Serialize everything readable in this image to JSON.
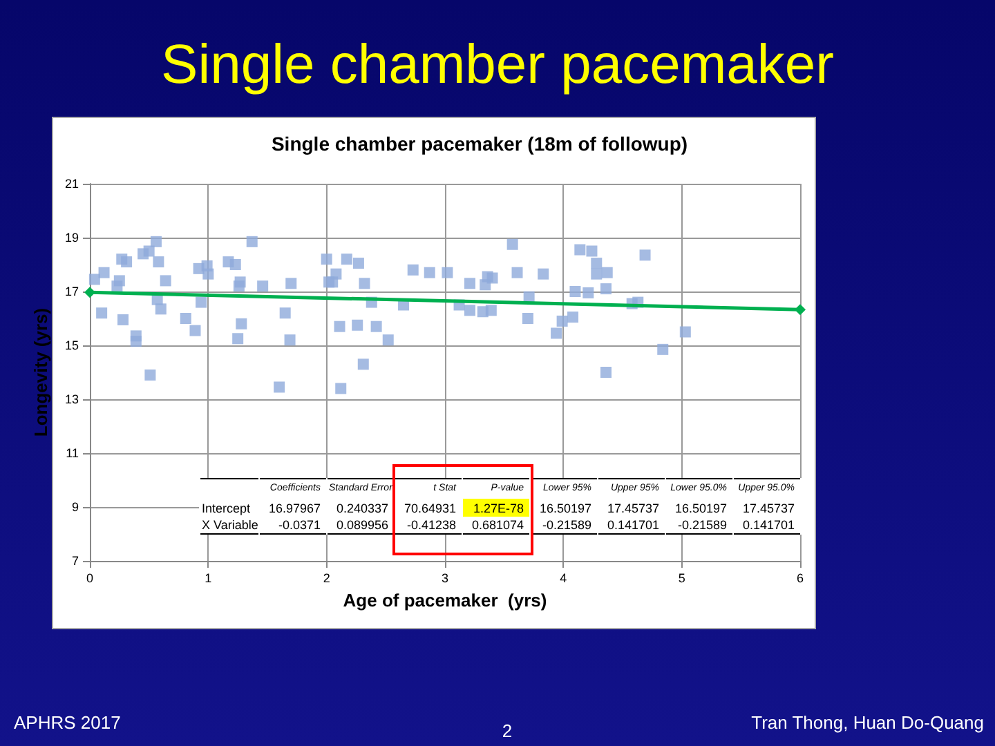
{
  "chart_data": {
    "type": "scatter",
    "title": "Single chamber pacemaker",
    "subtitle": "Single chamber pacemaker (18m of followup)",
    "xlabel": "Age of pacemaker  (yrs)",
    "ylabel": "Longevity (yrs)",
    "xlim": [
      0,
      6
    ],
    "xticks": [
      0,
      1,
      2,
      3,
      4,
      5,
      6
    ],
    "ylim": [
      7,
      21
    ],
    "yticks": [
      7,
      9,
      11,
      13,
      15,
      17,
      19,
      21
    ],
    "grid": true,
    "marker": "square",
    "series": [
      {
        "color": "#8eaadb",
        "x": [
          0.04,
          0.1,
          0.12,
          0.23,
          0.25,
          0.27,
          0.31,
          0.28,
          0.39,
          0.39,
          0.45,
          0.5,
          0.56,
          0.58,
          0.57,
          0.6,
          0.51,
          0.64,
          0.81,
          0.89,
          0.92,
          0.94,
          0.99,
          1.0,
          1.17,
          1.23,
          1.27,
          1.26,
          1.28,
          1.25,
          1.37,
          1.46,
          1.65,
          1.7,
          1.69,
          1.6,
          2.0,
          2.08,
          2.02,
          2.05,
          2.17,
          2.27,
          2.32,
          2.38,
          2.11,
          2.26,
          2.42,
          2.52,
          2.31,
          2.12,
          2.73,
          2.87,
          3.02,
          2.65,
          3.12,
          3.21,
          3.21,
          3.32,
          3.39,
          3.34,
          3.36,
          3.4,
          3.57,
          3.61,
          3.71,
          3.7,
          3.83,
          3.94,
          3.99,
          4.08,
          4.1,
          4.14,
          4.24,
          4.28,
          4.28,
          4.37,
          4.36,
          4.21,
          4.58,
          4.63,
          4.69,
          5.03,
          4.84,
          4.36
        ],
        "values": [
          17.45,
          16.2,
          17.7,
          17.2,
          17.4,
          18.2,
          18.1,
          15.95,
          15.35,
          15.15,
          18.4,
          18.5,
          18.85,
          18.1,
          16.7,
          16.35,
          13.9,
          17.4,
          16.0,
          15.55,
          17.85,
          16.6,
          17.95,
          17.65,
          18.1,
          18.0,
          17.35,
          17.2,
          15.8,
          15.25,
          18.85,
          17.2,
          16.2,
          17.3,
          15.2,
          13.45,
          18.2,
          17.65,
          17.35,
          17.35,
          18.2,
          18.05,
          17.3,
          16.6,
          15.7,
          15.75,
          15.7,
          15.2,
          14.3,
          13.4,
          17.8,
          17.7,
          17.7,
          16.5,
          16.5,
          16.3,
          17.3,
          16.25,
          16.3,
          17.25,
          17.55,
          17.5,
          18.75,
          17.7,
          16.8,
          16.0,
          17.65,
          15.45,
          15.9,
          16.05,
          17.0,
          18.55,
          18.5,
          18.05,
          17.65,
          17.7,
          17.1,
          16.95,
          16.55,
          16.6,
          18.35,
          15.5,
          14.85,
          14.0
        ]
      },
      {
        "type": "line",
        "color": "#00b050",
        "marker": "diamond",
        "x": [
          0,
          6
        ],
        "values": [
          16.97,
          16.33
        ]
      }
    ],
    "annotations": [
      "APHRS 2017",
      "2",
      "Tran Thong, Huan Do-Quang",
      "\tCoefficients\tStandard Error\tt Stat\tP-value\tLower 95%\tUpper 95%\tLower 95.0%\tUpper 95.0%",
      "Intercept\t16.97967\t0.240337\t70.64931\t1.27E-78\t16.50197\t17.45737\t16.50197\t17.45737",
      "X Variable\t-0.0371\t0.089956\t-0.41238\t0.681074\t-0.21589\t0.141701\t-0.21589\t0.141701"
    ]
  }
}
